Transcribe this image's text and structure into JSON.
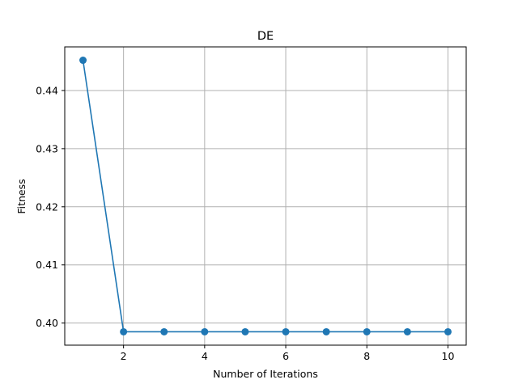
{
  "chart_data": {
    "type": "line",
    "title": "DE",
    "xlabel": "Number of Iterations",
    "ylabel": "Fitness",
    "x": [
      1,
      2,
      3,
      4,
      5,
      6,
      7,
      8,
      9,
      10
    ],
    "series": [
      {
        "values": [
          0.4452,
          0.3985,
          0.3985,
          0.3985,
          0.3985,
          0.3985,
          0.3985,
          0.3985,
          0.3985,
          0.3985
        ],
        "color": "#1f77b4",
        "marker": "circle"
      }
    ],
    "xlim": [
      0.55,
      10.45
    ],
    "ylim": [
      0.3962,
      0.4475
    ],
    "xticks": [
      2,
      4,
      6,
      8,
      10
    ],
    "xtick_labels": [
      "2",
      "4",
      "6",
      "8",
      "10"
    ],
    "yticks": [
      0.4,
      0.41,
      0.42,
      0.43,
      0.44
    ],
    "ytick_labels": [
      "0.40",
      "0.41",
      "0.42",
      "0.43",
      "0.44"
    ],
    "grid": true
  }
}
